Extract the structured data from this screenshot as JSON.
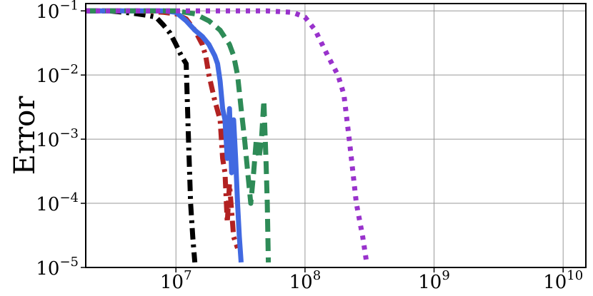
{
  "chart_data": {
    "type": "line",
    "title": "",
    "xlabel": "",
    "ylabel": "Error",
    "xscale": "log",
    "yscale": "log",
    "xlim": [
      2000000,
      15000000000
    ],
    "ylim": [
      1e-05,
      0.13
    ],
    "grid": true,
    "x_ticks": [
      {
        "value": 10000000,
        "base": "10",
        "exp": "7"
      },
      {
        "value": 100000000,
        "base": "10",
        "exp": "8"
      },
      {
        "value": 1000000000,
        "base": "10",
        "exp": "9"
      },
      {
        "value": 10000000000,
        "base": "10",
        "exp": "10"
      }
    ],
    "y_ticks": [
      {
        "value": 0.1,
        "base": "10",
        "exp": "−1"
      },
      {
        "value": 0.01,
        "base": "10",
        "exp": "−2"
      },
      {
        "value": 0.001,
        "base": "10",
        "exp": "−3"
      },
      {
        "value": 0.0001,
        "base": "10",
        "exp": "−4"
      },
      {
        "value": 1e-05,
        "base": "10",
        "exp": "−5"
      }
    ],
    "series": [
      {
        "color": "#000000",
        "style": "dashdot",
        "x": [
          2000000,
          3000000,
          4000000,
          5000000,
          6000000,
          7000000,
          8000000,
          9000000,
          10000000,
          11000000,
          12000000,
          12500000,
          13000000,
          13500000,
          14000000
        ],
        "y": [
          0.1,
          0.1,
          0.095,
          0.09,
          0.085,
          0.08,
          0.06,
          0.045,
          0.03,
          0.02,
          0.015,
          0.001,
          0.0001,
          3e-05,
          1.2e-05
        ]
      },
      {
        "color": "#b22222",
        "style": "dashdot",
        "x": [
          2000000,
          5000000,
          8000000,
          10000000,
          12000000,
          14000000,
          16000000,
          17000000,
          18000000,
          20000000,
          22000000,
          23000000,
          24000000,
          25000000,
          26000000,
          28000000,
          30000000
        ],
        "y": [
          0.1,
          0.1,
          0.095,
          0.09,
          0.075,
          0.05,
          0.03,
          0.02,
          0.01,
          0.004,
          0.002,
          0.0005,
          0.0003,
          5e-05,
          0.0002,
          3e-05,
          2e-05
        ]
      },
      {
        "color": "#4169e1",
        "style": "solid",
        "x": [
          2000000,
          5000000,
          8000000,
          10000000,
          12000000,
          14000000,
          16000000,
          18000000,
          20000000,
          21000000,
          22000000,
          23000000,
          24000000,
          25000000,
          26000000,
          27000000,
          28000000,
          29000000,
          30000000,
          31000000,
          32000000
        ],
        "y": [
          0.1,
          0.1,
          0.1,
          0.095,
          0.07,
          0.05,
          0.04,
          0.03,
          0.02,
          0.015,
          0.008,
          0.003,
          0.002,
          0.0005,
          0.003,
          0.0003,
          0.002,
          0.0005,
          0.0001,
          3e-05,
          1.2e-05
        ]
      },
      {
        "color": "#2e8b57",
        "style": "dashed",
        "x": [
          2000000,
          5000000,
          8000000,
          10000000,
          14000000,
          18000000,
          22000000,
          26000000,
          28000000,
          30000000,
          32000000,
          34000000,
          36000000,
          38000000,
          40000000,
          42000000,
          44000000,
          46000000,
          48000000,
          50000000,
          51000000,
          52000000
        ],
        "y": [
          0.1,
          0.1,
          0.1,
          0.1,
          0.09,
          0.07,
          0.05,
          0.03,
          0.02,
          0.01,
          0.003,
          0.001,
          0.0003,
          0.0001,
          0.0003,
          0.001,
          0.0005,
          0.001,
          0.004,
          0.0004,
          0.0001,
          1.2e-05
        ]
      },
      {
        "color": "#9932cc",
        "style": "dotted",
        "x": [
          2000000,
          10000000,
          50000000,
          80000000,
          100000000,
          120000000,
          150000000,
          180000000,
          200000000,
          220000000,
          250000000,
          280000000,
          300000000
        ],
        "y": [
          0.1,
          0.1,
          0.1,
          0.095,
          0.08,
          0.05,
          0.02,
          0.01,
          0.005,
          0.001,
          0.0001,
          3e-05,
          1.2e-05
        ]
      }
    ]
  }
}
